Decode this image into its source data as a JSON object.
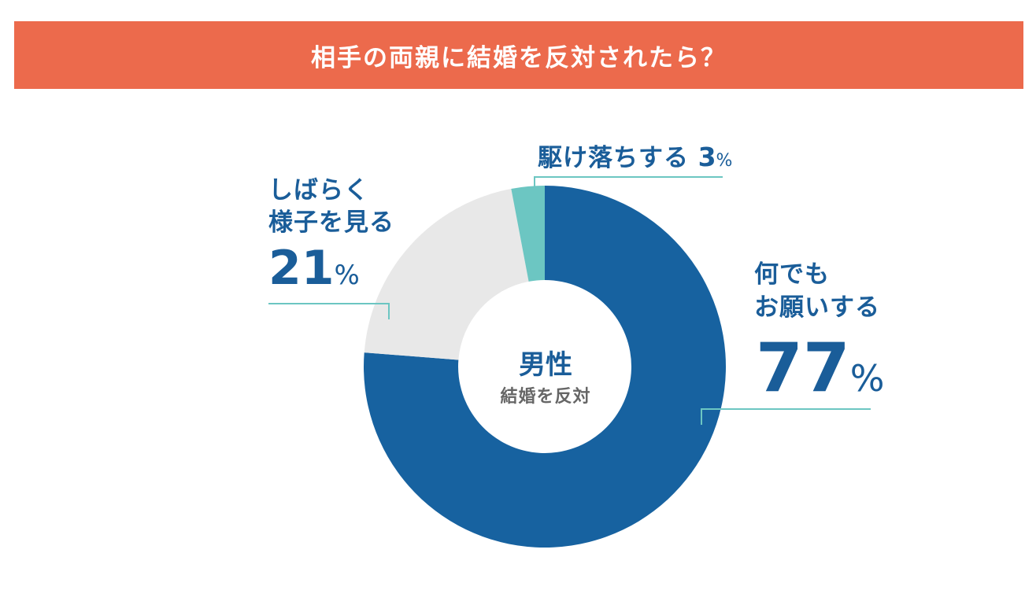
{
  "title": "相手の両親に結婚を反対されたら？",
  "colors": {
    "title_bg": "#ec6a4c",
    "accent_blue": "#1762a0",
    "label_blue": "#1a5d99",
    "teal": "#6cc6c2",
    "light_gray": "#e8e8e8",
    "center_gray": "#666666"
  },
  "center": {
    "main": "男性",
    "sub": "結婚を反対"
  },
  "labels": {
    "everything": {
      "line1": "何でも",
      "line2": "お願いする",
      "pct": "77",
      "sign": "%"
    },
    "wait": {
      "line1": "しばらく",
      "line2": "様子を見る",
      "pct": "21",
      "sign": "%"
    },
    "elope": {
      "text": "駆け落ちする",
      "pct": "3",
      "sign": "%"
    }
  },
  "chart_data": {
    "type": "pie",
    "donut": true,
    "title": "相手の両親に結婚を反対されたら？",
    "center_label": "男性",
    "center_sublabel": "結婚を反対",
    "categories": [
      "何でもお願いする",
      "しばらく様子を見る",
      "駆け落ちする"
    ],
    "values": [
      77,
      21,
      3
    ],
    "unit": "%",
    "colors": [
      "#1762a0",
      "#e8e8e8",
      "#6cc6c2"
    ]
  }
}
